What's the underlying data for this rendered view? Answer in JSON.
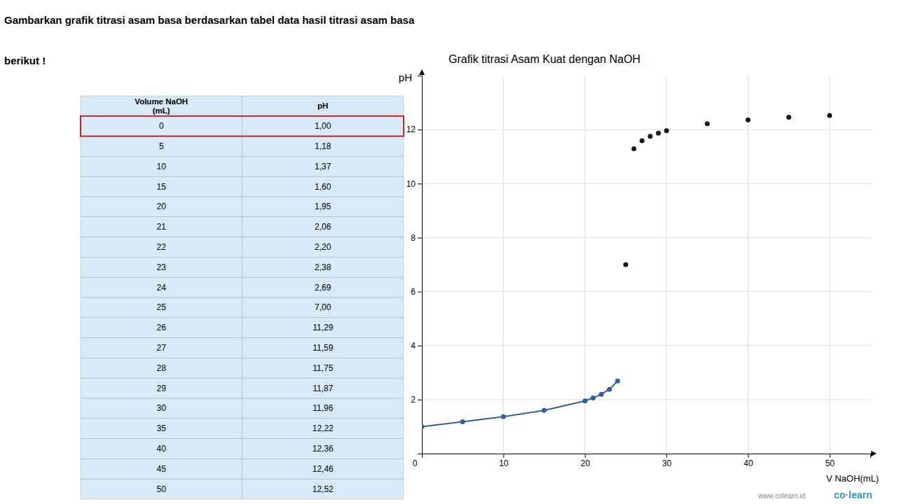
{
  "chart_data": [
    {
      "type": "table",
      "xlabel": "Volume NaOH\n(mL)",
      "ylabel": "pH",
      "x": [
        0,
        5,
        10,
        15,
        20,
        21,
        22,
        23,
        24,
        25,
        26,
        27,
        28,
        29,
        30,
        35,
        40,
        45,
        50
      ],
      "values": [
        1.0,
        1.18,
        1.37,
        1.6,
        1.95,
        2.06,
        2.2,
        2.38,
        2.69,
        7.0,
        11.29,
        11.59,
        11.75,
        11.87,
        11.96,
        12.22,
        12.36,
        12.46,
        12.52
      ],
      "value_labels": [
        "1,00",
        "1,18",
        "1,37",
        "1,60",
        "1,95",
        "2,06",
        "2,20",
        "2,38",
        "2,69",
        "7,00",
        "11,29",
        "11,59",
        "11,75",
        "11,87",
        "11,96",
        "12,22",
        "12,36",
        "12,46",
        "12,52"
      ],
      "color": "#d6eaf8"
    },
    {
      "type": "line",
      "title": "Grafik titrasi Asam Kuat dengan NaOH",
      "xlabel": "V NaOH(mL)",
      "ylabel": "pH",
      "x": [
        0,
        5,
        10,
        15,
        20,
        21,
        22,
        23,
        24,
        25,
        26,
        27,
        28,
        29,
        30,
        35,
        40,
        45,
        50
      ],
      "series": [
        {
          "type": "line",
          "marker": "circle",
          "color": "#2e5fa3",
          "values": [
            1.0,
            1.18,
            1.37,
            1.6,
            1.95,
            2.06,
            2.2,
            2.38,
            2.69,
            null,
            null,
            null,
            null,
            null,
            null,
            null,
            null,
            null,
            null
          ]
        },
        {
          "type": "scatter",
          "marker": "circle",
          "color": "#1a1a1a",
          "values": [
            null,
            null,
            null,
            null,
            null,
            null,
            null,
            null,
            null,
            7.0,
            11.29,
            11.59,
            11.75,
            11.87,
            11.96,
            12.22,
            12.36,
            12.46,
            12.52
          ]
        }
      ],
      "xlim": [
        0,
        55
      ],
      "ylim": [
        0,
        14
      ],
      "xticks": [
        10,
        20,
        30,
        40,
        50
      ],
      "yticks": [
        2,
        4,
        6,
        8,
        10,
        12
      ],
      "grid": true,
      "annotations": [
        "Gambarkan grafik titrasi asam basa berdasarkan tabel data hasil titrasi asam basa",
        "berikut !",
        "0",
        "www.colearn.id",
        "co·learn"
      ]
    }
  ]
}
